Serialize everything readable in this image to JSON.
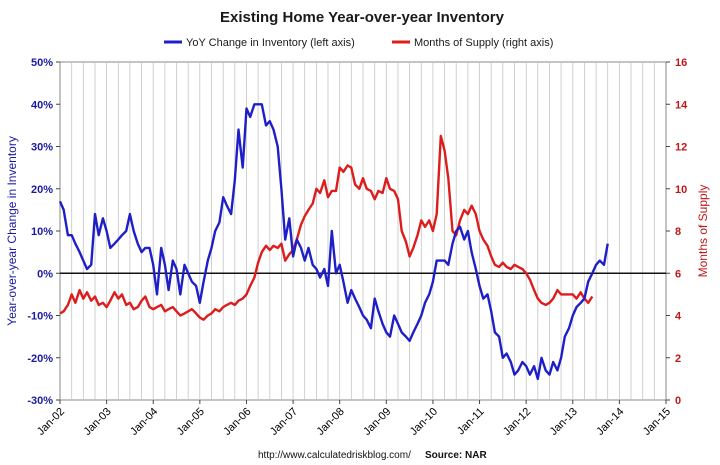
{
  "chart_data": {
    "type": "line",
    "title": "Existing Home Year-over-year Inventory",
    "ylabel_left": "Year-over-year Change in Inventory",
    "ylabel_right": "Months of Supply",
    "ylim_left": [
      -30,
      50
    ],
    "ylim_right": [
      0,
      16
    ],
    "xlim": [
      2002,
      2015
    ],
    "legend_position": "top",
    "grid": "vertical",
    "x_tick_labels": [
      "Jan-02",
      "Jan-03",
      "Jan-04",
      "Jan-05",
      "Jan-06",
      "Jan-07",
      "Jan-08",
      "Jan-09",
      "Jan-10",
      "Jan-11",
      "Jan-12",
      "Jan-13",
      "Jan-14",
      "Jan-15"
    ],
    "y_left_tick_labels": [
      "-30%",
      "-20%",
      "-10%",
      "0%",
      "10%",
      "20%",
      "30%",
      "40%",
      "50%"
    ],
    "y_right_tick_labels": [
      "0",
      "2",
      "4",
      "6",
      "8",
      "10",
      "12",
      "14",
      "16"
    ],
    "series": [
      {
        "name": "YoY Change in Inventory (left axis)",
        "axis": "left",
        "color": "#1f1fc8",
        "points": [
          [
            2002.0,
            17
          ],
          [
            2002.08,
            15
          ],
          [
            2002.17,
            9
          ],
          [
            2002.25,
            9
          ],
          [
            2002.33,
            7
          ],
          [
            2002.42,
            5
          ],
          [
            2002.5,
            3
          ],
          [
            2002.58,
            1
          ],
          [
            2002.67,
            2
          ],
          [
            2002.75,
            14
          ],
          [
            2002.83,
            9
          ],
          [
            2002.92,
            13
          ],
          [
            2003.0,
            10
          ],
          [
            2003.08,
            6
          ],
          [
            2003.17,
            7
          ],
          [
            2003.25,
            8
          ],
          [
            2003.33,
            9
          ],
          [
            2003.42,
            10
          ],
          [
            2003.5,
            14
          ],
          [
            2003.58,
            10
          ],
          [
            2003.67,
            7
          ],
          [
            2003.75,
            5
          ],
          [
            2003.83,
            6
          ],
          [
            2003.92,
            6
          ],
          [
            2004.0,
            2
          ],
          [
            2004.08,
            -5
          ],
          [
            2004.17,
            6
          ],
          [
            2004.25,
            2
          ],
          [
            2004.33,
            -4
          ],
          [
            2004.42,
            3
          ],
          [
            2004.5,
            1
          ],
          [
            2004.58,
            -5
          ],
          [
            2004.67,
            2
          ],
          [
            2004.75,
            0
          ],
          [
            2004.83,
            -2
          ],
          [
            2004.92,
            -3
          ],
          [
            2005.0,
            -7
          ],
          [
            2005.08,
            -2
          ],
          [
            2005.17,
            3
          ],
          [
            2005.25,
            6
          ],
          [
            2005.33,
            10
          ],
          [
            2005.42,
            12
          ],
          [
            2005.5,
            18
          ],
          [
            2005.58,
            16
          ],
          [
            2005.67,
            14
          ],
          [
            2005.75,
            22
          ],
          [
            2005.83,
            34
          ],
          [
            2005.92,
            25
          ],
          [
            2006.0,
            39
          ],
          [
            2006.08,
            37
          ],
          [
            2006.17,
            40
          ],
          [
            2006.25,
            40
          ],
          [
            2006.33,
            40
          ],
          [
            2006.42,
            35
          ],
          [
            2006.5,
            36
          ],
          [
            2006.58,
            34
          ],
          [
            2006.67,
            30
          ],
          [
            2006.75,
            20
          ],
          [
            2006.83,
            8
          ],
          [
            2006.92,
            13
          ],
          [
            2007.0,
            4
          ],
          [
            2007.08,
            8
          ],
          [
            2007.17,
            6
          ],
          [
            2007.25,
            3
          ],
          [
            2007.33,
            6
          ],
          [
            2007.42,
            2
          ],
          [
            2007.5,
            1
          ],
          [
            2007.58,
            -1
          ],
          [
            2007.67,
            1
          ],
          [
            2007.75,
            -3
          ],
          [
            2007.83,
            10
          ],
          [
            2007.92,
            0
          ],
          [
            2008.0,
            2
          ],
          [
            2008.08,
            -2
          ],
          [
            2008.17,
            -7
          ],
          [
            2008.25,
            -4
          ],
          [
            2008.33,
            -6
          ],
          [
            2008.42,
            -8
          ],
          [
            2008.5,
            -10
          ],
          [
            2008.58,
            -11
          ],
          [
            2008.67,
            -13
          ],
          [
            2008.75,
            -6
          ],
          [
            2008.83,
            -9
          ],
          [
            2008.92,
            -12
          ],
          [
            2009.0,
            -14
          ],
          [
            2009.08,
            -15
          ],
          [
            2009.17,
            -10
          ],
          [
            2009.25,
            -12
          ],
          [
            2009.33,
            -14
          ],
          [
            2009.42,
            -15
          ],
          [
            2009.5,
            -16
          ],
          [
            2009.58,
            -14
          ],
          [
            2009.67,
            -12
          ],
          [
            2009.75,
            -10
          ],
          [
            2009.83,
            -7
          ],
          [
            2009.92,
            -5
          ],
          [
            2010.0,
            -2
          ],
          [
            2010.08,
            3
          ],
          [
            2010.17,
            3
          ],
          [
            2010.25,
            3
          ],
          [
            2010.33,
            2
          ],
          [
            2010.42,
            7
          ],
          [
            2010.5,
            10
          ],
          [
            2010.58,
            11
          ],
          [
            2010.67,
            8
          ],
          [
            2010.75,
            10
          ],
          [
            2010.83,
            5
          ],
          [
            2010.92,
            1
          ],
          [
            2011.0,
            -3
          ],
          [
            2011.08,
            -6
          ],
          [
            2011.17,
            -5
          ],
          [
            2011.25,
            -9
          ],
          [
            2011.33,
            -14
          ],
          [
            2011.42,
            -15
          ],
          [
            2011.5,
            -20
          ],
          [
            2011.58,
            -19
          ],
          [
            2011.67,
            -21
          ],
          [
            2011.75,
            -24
          ],
          [
            2011.83,
            -23
          ],
          [
            2011.92,
            -21
          ],
          [
            2012.0,
            -22
          ],
          [
            2012.08,
            -24
          ],
          [
            2012.17,
            -22
          ],
          [
            2012.25,
            -25
          ],
          [
            2012.33,
            -20
          ],
          [
            2012.42,
            -23
          ],
          [
            2012.5,
            -24
          ],
          [
            2012.58,
            -21
          ],
          [
            2012.67,
            -23
          ],
          [
            2012.75,
            -20
          ],
          [
            2012.83,
            -15
          ],
          [
            2012.92,
            -13
          ],
          [
            2013.0,
            -10
          ],
          [
            2013.08,
            -8
          ],
          [
            2013.17,
            -7
          ],
          [
            2013.25,
            -6
          ],
          [
            2013.33,
            -2
          ],
          [
            2013.42,
            0
          ],
          [
            2013.5,
            2
          ],
          [
            2013.58,
            3
          ],
          [
            2013.67,
            2
          ],
          [
            2013.75,
            7
          ]
        ]
      },
      {
        "name": "Months of Supply (right axis)",
        "axis": "right",
        "color": "#dd1c1c",
        "points": [
          [
            2002.0,
            4.1
          ],
          [
            2002.08,
            4.2
          ],
          [
            2002.17,
            4.5
          ],
          [
            2002.25,
            5.0
          ],
          [
            2002.33,
            4.6
          ],
          [
            2002.42,
            5.2
          ],
          [
            2002.5,
            4.8
          ],
          [
            2002.58,
            5.1
          ],
          [
            2002.67,
            4.7
          ],
          [
            2002.75,
            4.9
          ],
          [
            2002.83,
            4.5
          ],
          [
            2002.92,
            4.6
          ],
          [
            2003.0,
            4.4
          ],
          [
            2003.08,
            4.7
          ],
          [
            2003.17,
            5.1
          ],
          [
            2003.25,
            4.8
          ],
          [
            2003.33,
            5.0
          ],
          [
            2003.42,
            4.5
          ],
          [
            2003.5,
            4.6
          ],
          [
            2003.58,
            4.3
          ],
          [
            2003.67,
            4.4
          ],
          [
            2003.75,
            4.7
          ],
          [
            2003.83,
            4.9
          ],
          [
            2003.92,
            4.4
          ],
          [
            2004.0,
            4.3
          ],
          [
            2004.08,
            4.4
          ],
          [
            2004.17,
            4.5
          ],
          [
            2004.25,
            4.2
          ],
          [
            2004.33,
            4.3
          ],
          [
            2004.42,
            4.4
          ],
          [
            2004.5,
            4.2
          ],
          [
            2004.58,
            4.0
          ],
          [
            2004.67,
            4.1
          ],
          [
            2004.75,
            4.2
          ],
          [
            2004.83,
            4.3
          ],
          [
            2004.92,
            4.1
          ],
          [
            2005.0,
            3.9
          ],
          [
            2005.08,
            3.8
          ],
          [
            2005.17,
            4.0
          ],
          [
            2005.25,
            4.1
          ],
          [
            2005.33,
            4.3
          ],
          [
            2005.42,
            4.2
          ],
          [
            2005.5,
            4.4
          ],
          [
            2005.58,
            4.5
          ],
          [
            2005.67,
            4.6
          ],
          [
            2005.75,
            4.5
          ],
          [
            2005.83,
            4.7
          ],
          [
            2005.92,
            4.8
          ],
          [
            2006.0,
            5.0
          ],
          [
            2006.08,
            5.4
          ],
          [
            2006.17,
            5.8
          ],
          [
            2006.25,
            6.5
          ],
          [
            2006.33,
            7.0
          ],
          [
            2006.42,
            7.3
          ],
          [
            2006.5,
            7.1
          ],
          [
            2006.58,
            7.3
          ],
          [
            2006.67,
            7.2
          ],
          [
            2006.75,
            7.4
          ],
          [
            2006.83,
            6.6
          ],
          [
            2006.92,
            6.9
          ],
          [
            2007.0,
            7.1
          ],
          [
            2007.08,
            7.6
          ],
          [
            2007.17,
            8.3
          ],
          [
            2007.25,
            8.7
          ],
          [
            2007.33,
            9.0
          ],
          [
            2007.42,
            9.3
          ],
          [
            2007.5,
            10.0
          ],
          [
            2007.58,
            9.8
          ],
          [
            2007.67,
            10.4
          ],
          [
            2007.75,
            9.6
          ],
          [
            2007.83,
            9.9
          ],
          [
            2007.92,
            9.9
          ],
          [
            2008.0,
            11.0
          ],
          [
            2008.08,
            10.8
          ],
          [
            2008.17,
            11.1
          ],
          [
            2008.25,
            11.0
          ],
          [
            2008.33,
            10.2
          ],
          [
            2008.42,
            10.0
          ],
          [
            2008.5,
            10.5
          ],
          [
            2008.58,
            10.0
          ],
          [
            2008.67,
            9.9
          ],
          [
            2008.75,
            9.5
          ],
          [
            2008.83,
            9.9
          ],
          [
            2008.92,
            9.8
          ],
          [
            2009.0,
            10.5
          ],
          [
            2009.08,
            10.0
          ],
          [
            2009.17,
            9.9
          ],
          [
            2009.25,
            9.5
          ],
          [
            2009.33,
            8.0
          ],
          [
            2009.42,
            7.5
          ],
          [
            2009.5,
            6.8
          ],
          [
            2009.58,
            7.2
          ],
          [
            2009.67,
            7.8
          ],
          [
            2009.75,
            8.5
          ],
          [
            2009.83,
            8.2
          ],
          [
            2009.92,
            8.5
          ],
          [
            2010.0,
            8.0
          ],
          [
            2010.08,
            8.8
          ],
          [
            2010.17,
            12.5
          ],
          [
            2010.25,
            11.8
          ],
          [
            2010.33,
            10.5
          ],
          [
            2010.42,
            8.0
          ],
          [
            2010.5,
            7.8
          ],
          [
            2010.58,
            8.5
          ],
          [
            2010.67,
            9.0
          ],
          [
            2010.75,
            8.8
          ],
          [
            2010.83,
            9.2
          ],
          [
            2010.92,
            8.8
          ],
          [
            2011.0,
            8.0
          ],
          [
            2011.08,
            7.6
          ],
          [
            2011.17,
            7.3
          ],
          [
            2011.25,
            6.8
          ],
          [
            2011.33,
            6.4
          ],
          [
            2011.42,
            6.3
          ],
          [
            2011.5,
            6.5
          ],
          [
            2011.58,
            6.3
          ],
          [
            2011.67,
            6.2
          ],
          [
            2011.75,
            6.4
          ],
          [
            2011.83,
            6.3
          ],
          [
            2011.92,
            6.2
          ],
          [
            2012.0,
            6.0
          ],
          [
            2012.08,
            5.7
          ],
          [
            2012.17,
            5.2
          ],
          [
            2012.25,
            4.8
          ],
          [
            2012.33,
            4.6
          ],
          [
            2012.42,
            4.5
          ],
          [
            2012.5,
            4.6
          ],
          [
            2012.58,
            4.8
          ],
          [
            2012.67,
            5.2
          ],
          [
            2012.75,
            5.0
          ],
          [
            2012.83,
            5.0
          ],
          [
            2012.92,
            5.0
          ],
          [
            2013.0,
            5.0
          ],
          [
            2013.08,
            4.8
          ],
          [
            2013.17,
            5.1
          ],
          [
            2013.25,
            4.8
          ],
          [
            2013.33,
            4.6
          ],
          [
            2013.42,
            4.9
          ]
        ]
      }
    ]
  },
  "footer": {
    "url": "http://www.calculatedriskblog.com/",
    "source": "Source: NAR"
  }
}
